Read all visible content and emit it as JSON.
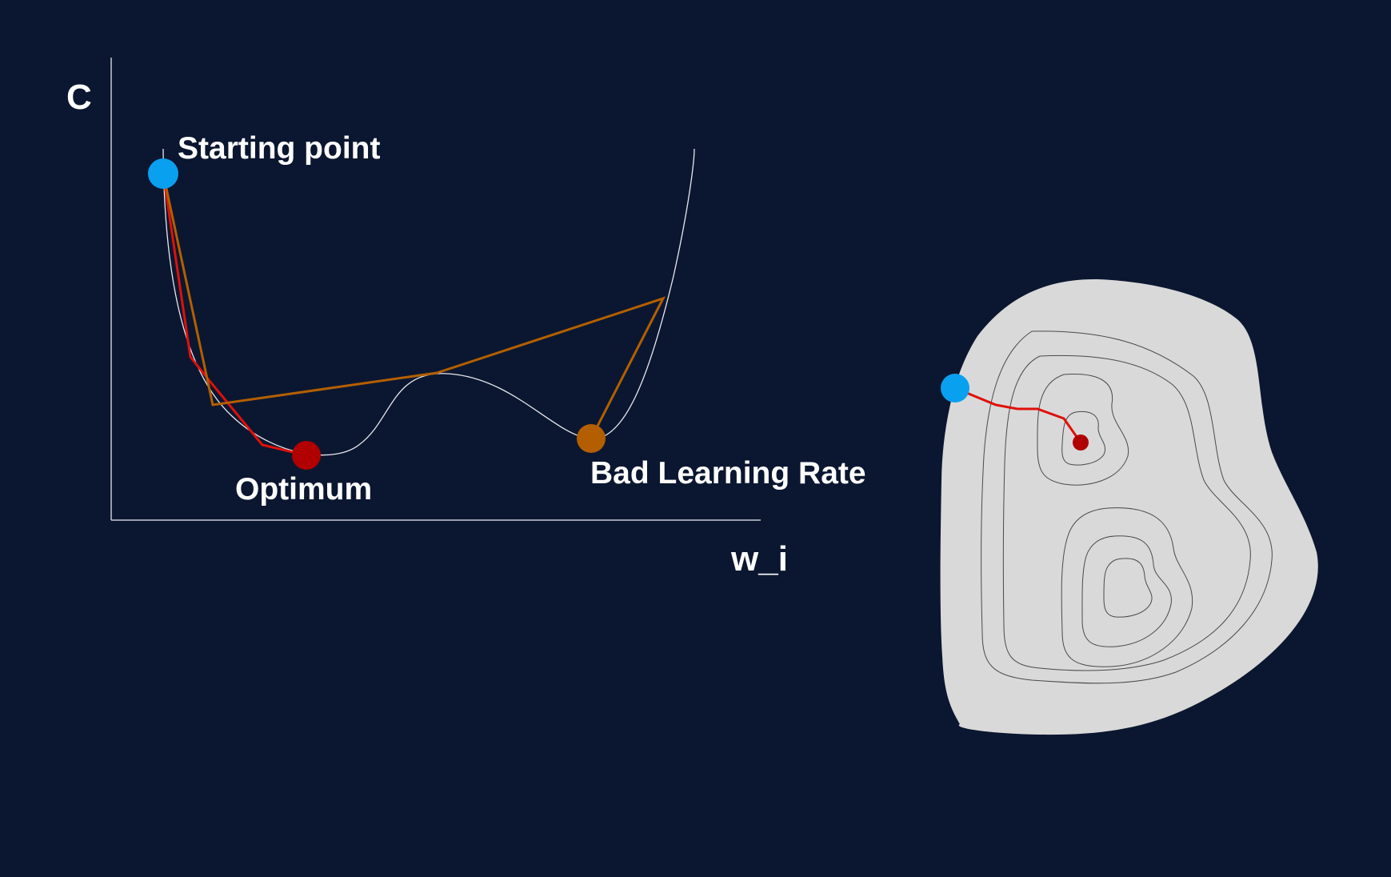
{
  "labels": {
    "y_axis": "C",
    "x_axis": "w_i",
    "starting_point": "Starting point",
    "optimum": "Optimum",
    "bad_learning_rate": "Bad Learning Rate"
  },
  "colors": {
    "background": "#0b1730",
    "axis": "#c8ccd4",
    "cost_curve": "#e6e8ee",
    "start_point": "#0aa0f0",
    "optimum_point": "#b00000",
    "bad_lr_point": "#b35f00",
    "good_path": "#e0100a",
    "bad_path": "#b35f00",
    "contour_fill": "#d9d9d9",
    "contour_line": "#4a4a4a"
  }
}
